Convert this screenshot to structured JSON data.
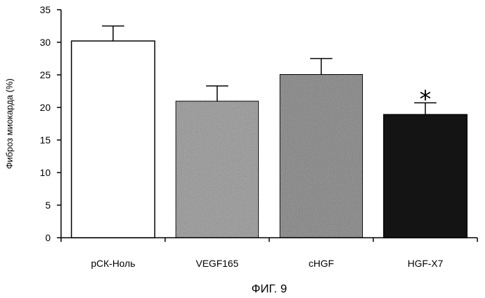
{
  "chart_data": {
    "type": "bar",
    "categories": [
      "рСК-Ноль",
      "VEGF165",
      "cHGF",
      "HGF-X7"
    ],
    "values": [
      30.2,
      21.0,
      25.1,
      18.9
    ],
    "errors": [
      2.3,
      2.3,
      2.4,
      1.8
    ],
    "title": "",
    "xlabel": "",
    "ylabel": "Фиброз миокарда (%)",
    "ylim": [
      0,
      35
    ],
    "yticks": [
      "0",
      "5",
      "10",
      "15",
      "20",
      "25",
      "30",
      "35"
    ],
    "bar_fills": [
      "#ffffff",
      "#b9b9b9",
      "#a9a9a9",
      "#141414"
    ],
    "annotations": [
      {
        "category": "HGF-X7",
        "text": "*"
      }
    ],
    "grid": false,
    "legend": "none"
  },
  "caption": "ФИГ. 9"
}
